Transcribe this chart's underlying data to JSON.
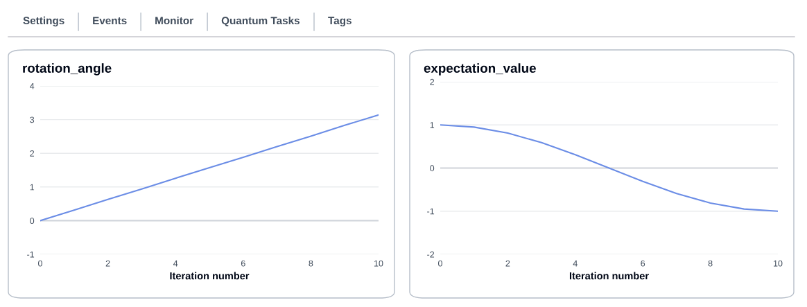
{
  "chart_data": [
    {
      "type": "other",
      "annotations": [
        "Settings",
        "Events",
        "Monitor",
        "Quantum Tasks",
        "Tags"
      ]
    },
    {
      "type": "line",
      "title": "rotation_angle",
      "xlabel": "Iteration number",
      "x": [
        0,
        1,
        2,
        3,
        4,
        5,
        6,
        7,
        8,
        9,
        10
      ],
      "series": [
        {
          "color": "#6b8de6",
          "values": [
            0,
            0.31,
            0.63,
            0.94,
            1.26,
            1.57,
            1.88,
            2.2,
            2.51,
            2.83,
            3.14
          ]
        }
      ],
      "xlim": [
        0,
        10
      ],
      "xticks": [
        0,
        2,
        4,
        6,
        8,
        10
      ],
      "ylim": [
        -1,
        4
      ],
      "yticks": [
        -1,
        0,
        1,
        2,
        3,
        4
      ],
      "grid": "y",
      "marker": "none",
      "line_style": "solid"
    },
    {
      "type": "line",
      "title": "expectation_value",
      "xlabel": "Iteration number",
      "x": [
        0,
        1,
        2,
        3,
        4,
        5,
        6,
        7,
        8,
        9,
        10
      ],
      "series": [
        {
          "color": "#6b8de6",
          "values": [
            1,
            0.95,
            0.81,
            0.59,
            0.31,
            0,
            -0.31,
            -0.59,
            -0.81,
            -0.95,
            -1
          ]
        }
      ],
      "xlim": [
        0,
        10
      ],
      "xticks": [
        0,
        2,
        4,
        6,
        8,
        10
      ],
      "ylim": [
        -2,
        2
      ],
      "yticks": [
        -2,
        -1,
        0,
        1,
        2
      ],
      "grid": "y",
      "marker": "none",
      "line_style": "solid"
    }
  ]
}
